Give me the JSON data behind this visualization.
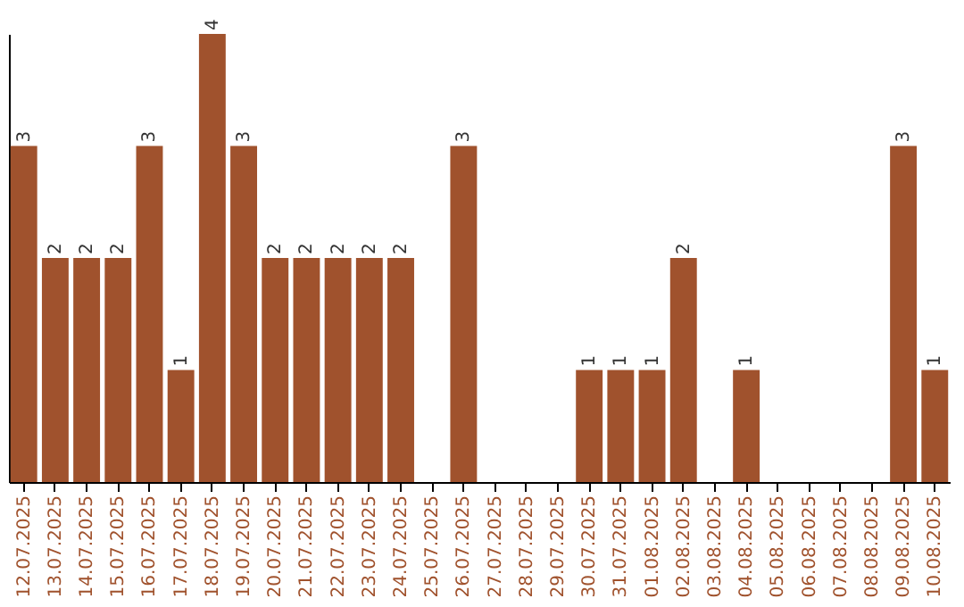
{
  "chart_data": {
    "type": "bar",
    "categories": [
      "12.07.2025",
      "13.07.2025",
      "14.07.2025",
      "15.07.2025",
      "16.07.2025",
      "17.07.2025",
      "18.07.2025",
      "19.07.2025",
      "20.07.2025",
      "21.07.2025",
      "22.07.2025",
      "23.07.2025",
      "24.07.2025",
      "25.07.2025",
      "26.07.2025",
      "27.07.2025",
      "28.07.2025",
      "29.07.2025",
      "30.07.2025",
      "31.07.2025",
      "01.08.2025",
      "02.08.2025",
      "03.08.2025",
      "04.08.2025",
      "05.08.2025",
      "06.08.2025",
      "07.08.2025",
      "08.08.2025",
      "09.08.2025",
      "10.08.2025"
    ],
    "values": [
      3,
      2,
      2,
      2,
      3,
      1,
      4,
      3,
      2,
      2,
      2,
      2,
      2,
      0,
      3,
      0,
      0,
      0,
      1,
      1,
      1,
      2,
      0,
      1,
      0,
      0,
      0,
      0,
      3,
      1
    ],
    "value_labels": [
      "3",
      "2",
      "2",
      "2",
      "3",
      "1",
      "4",
      "3",
      "2",
      "2",
      "2",
      "2",
      "2",
      null,
      "3",
      null,
      null,
      null,
      "1",
      "1",
      "1",
      "2",
      null,
      "1",
      null,
      null,
      null,
      null,
      "3",
      "1"
    ],
    "color": "#a0522d",
    "ylim": [
      0,
      4
    ],
    "tick_labels": "x"
  }
}
